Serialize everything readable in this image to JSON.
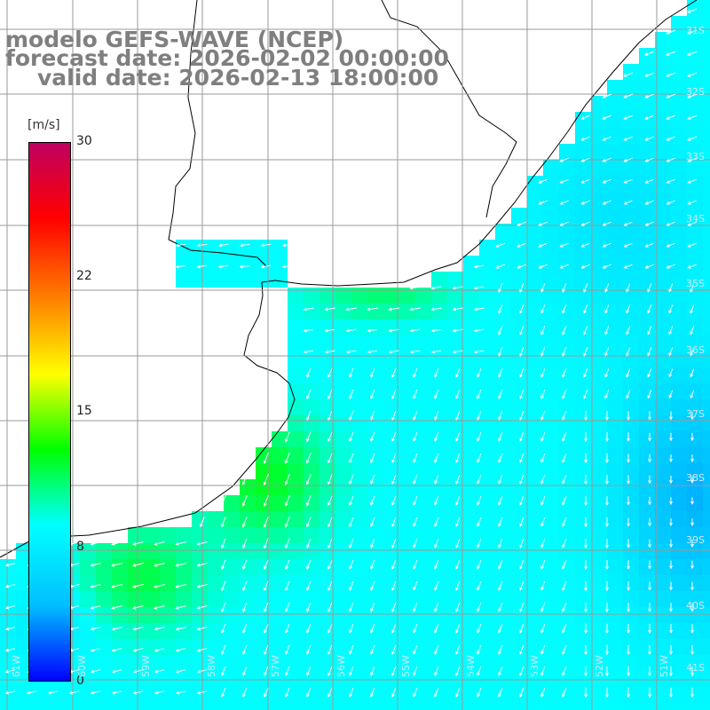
{
  "header": {
    "line1": "modelo GEFS-WAVE (NCEP)",
    "line2": "forecast date: 2026-02-02 00:00:00",
    "line3": "valid date: 2026-02-13 18:00:00"
  },
  "colorbar": {
    "unit": "[m/s]",
    "ticks": [
      "30",
      "22",
      "15",
      "8",
      "0"
    ],
    "range": [
      0,
      30
    ],
    "colors": [
      "#0000ff",
      "#00bfff",
      "#00ffff",
      "#00ff00",
      "#ffff00",
      "#ff8000",
      "#ff0000",
      "#c00060"
    ]
  },
  "map": {
    "grid_color": "#9a9a9a",
    "coast_color": "#000000",
    "field": "wind speed (m/s) with direction vectors",
    "lat_labels": [
      "31S",
      "32S",
      "33S",
      "34S",
      "35S",
      "36S",
      "37S",
      "38S",
      "39S",
      "40S",
      "41S"
    ],
    "lon_labels": [
      "61W",
      "60W",
      "59W",
      "58W",
      "57W",
      "56W",
      "55W",
      "54W",
      "53W",
      "52W",
      "51W"
    ]
  }
}
